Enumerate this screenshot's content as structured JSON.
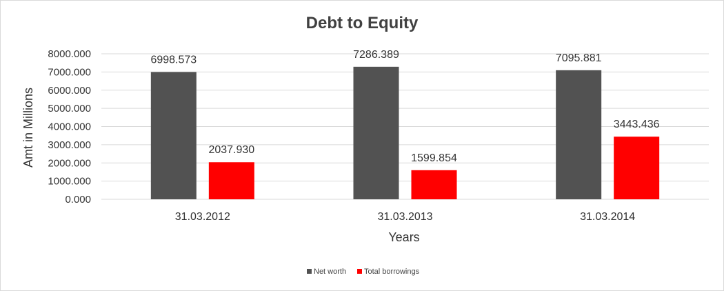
{
  "chart_data": {
    "type": "bar",
    "title": "Debt to Equity",
    "xlabel": "Years",
    "ylabel": "Amt in Millions",
    "categories": [
      "31.03.2012",
      "31.03.2013",
      "31.03.2014"
    ],
    "series": [
      {
        "name": "Net worth",
        "color": "#525252",
        "values": [
          6998.573,
          7286.389,
          7095.881
        ]
      },
      {
        "name": "Total borrowings",
        "color": "#ff0000",
        "values": [
          2037.93,
          1599.854,
          3443.436
        ]
      }
    ],
    "ylim": [
      0,
      8000
    ],
    "yticks": [
      "0.000",
      "1000.000",
      "2000.000",
      "3000.000",
      "4000.000",
      "5000.000",
      "6000.000",
      "7000.000",
      "8000.000"
    ],
    "data_labels": [
      [
        "6998.573",
        "7286.389",
        "7095.881"
      ],
      [
        "2037.930",
        "1599.854",
        "3443.436"
      ]
    ],
    "grid": true,
    "legend": "bottom"
  }
}
